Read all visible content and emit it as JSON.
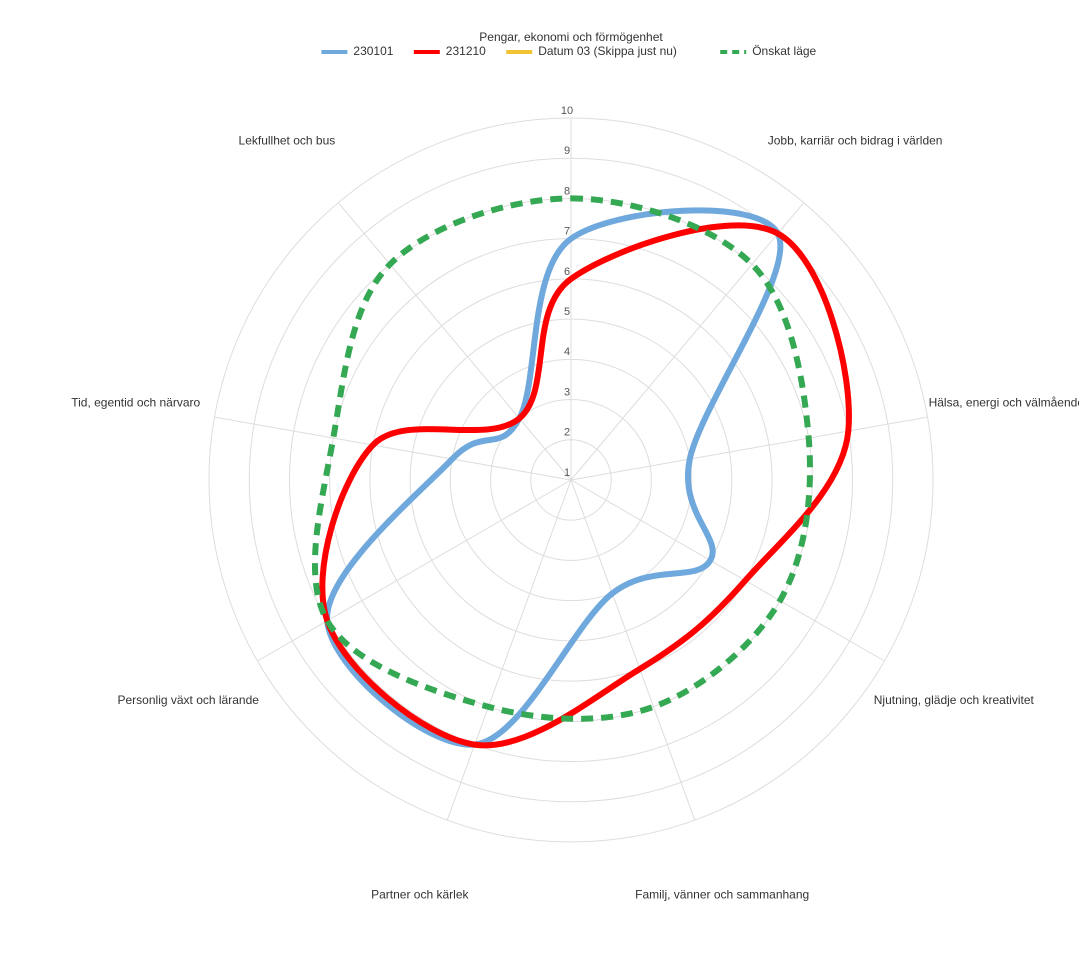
{
  "chart_data": {
    "type": "radar",
    "categories": [
      "Pengar, ekonomi och förmögenhet",
      "Jobb, karriär och bidrag i världen",
      "Hälsa, energi och välmående",
      "Njutning, glädje och kreativitet",
      "Familj, vänner och sammanhang",
      "Partner och kärlek",
      "Personlig växt och lärande",
      "Tid, egentid och närvaro",
      "Lekfullhet och bus"
    ],
    "series": [
      {
        "name": "230101",
        "color": "#6fa8dc",
        "values": [
          7,
          9,
          4,
          5,
          4,
          8,
          8,
          4,
          3
        ]
      },
      {
        "name": "231210",
        "color": "#ff0000",
        "values": [
          6,
          9,
          8,
          6,
          6,
          8,
          8,
          6,
          3
        ]
      },
      {
        "name": "Datum 03 (Skippa just nu)",
        "color": "#f1c232",
        "values": [
          null,
          null,
          null,
          null,
          null,
          null,
          null,
          null,
          null
        ]
      },
      {
        "name": "Önskat läge",
        "color": "#34a853",
        "dashed": true,
        "values": [
          8,
          8,
          7,
          7,
          7,
          7,
          8,
          7,
          8
        ]
      }
    ],
    "ylim": [
      1,
      10
    ],
    "yticks": [
      1,
      2,
      3,
      4,
      5,
      6,
      7,
      8,
      9,
      10
    ],
    "grid": true,
    "legend": "top"
  }
}
